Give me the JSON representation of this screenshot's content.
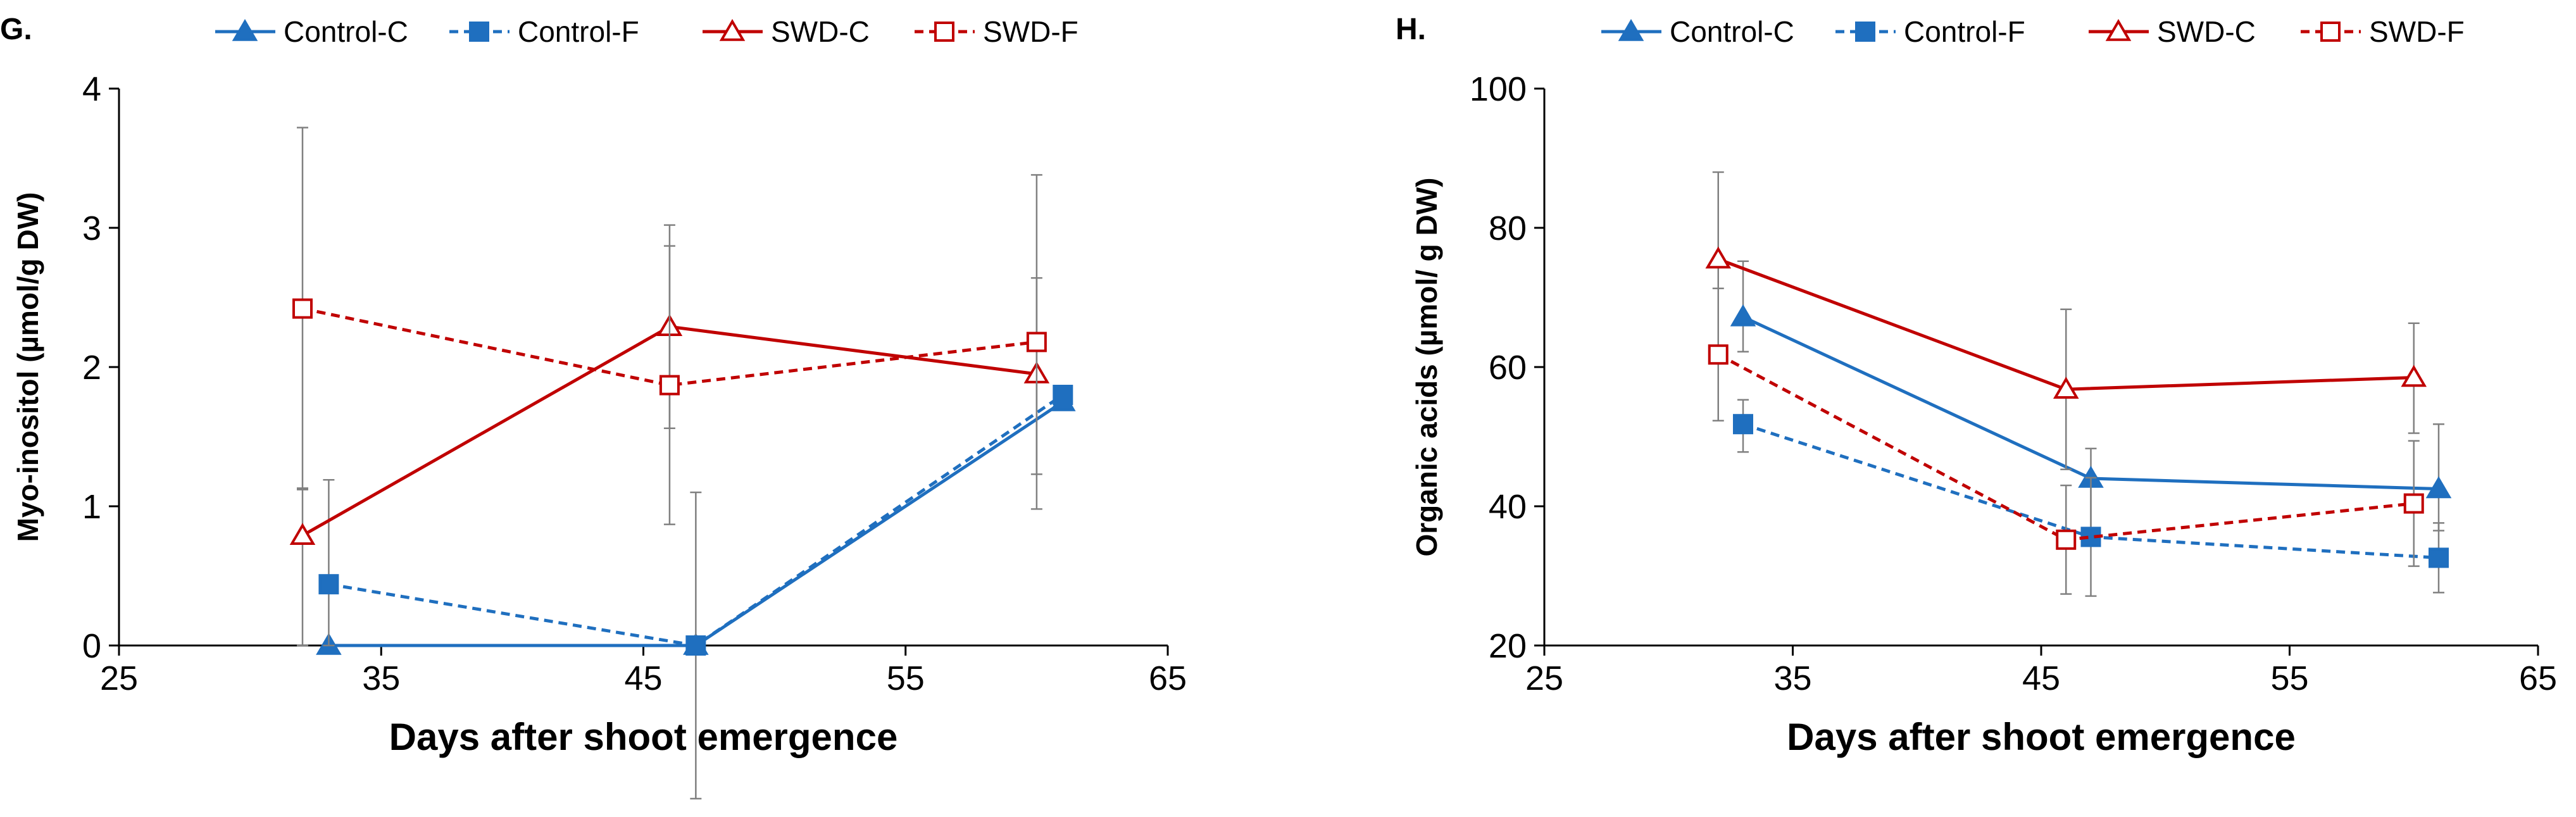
{
  "colors": {
    "control": "#1f6fbf",
    "swd": "#c00000",
    "error": "#808080",
    "axis": "#000000"
  },
  "chart_data": [
    {
      "type": "scatter",
      "panel_label": "G.",
      "xlabel": "Days after shoot emergence",
      "ylabel": "Myo-inositol (µmol/g DW)",
      "xlim": [
        25,
        65
      ],
      "ylim": [
        0,
        4
      ],
      "xticks": [
        "25",
        "35",
        "45",
        "55",
        "65"
      ],
      "yticks": [
        "0",
        "1",
        "2",
        "3",
        "4"
      ],
      "series": [
        {
          "name": "Control-C",
          "group": "control",
          "marker": "triangle-filled",
          "line": "solid",
          "x": [
            33,
            47,
            61
          ],
          "y": [
            0.0,
            0.0,
            1.75
          ],
          "err_low": [
            0.0,
            0.0,
            0.0
          ],
          "err_high": [
            0.0,
            0.0,
            0.0
          ]
        },
        {
          "name": "Control-F",
          "group": "control",
          "marker": "square-filled",
          "line": "dashed",
          "x": [
            33,
            47,
            61
          ],
          "y": [
            0.44,
            0.0,
            1.8
          ],
          "err_low": [
            0.44,
            1.1,
            0.0
          ],
          "err_high": [
            0.75,
            1.1,
            0.0
          ]
        },
        {
          "name": "SWD-C",
          "group": "swd",
          "marker": "triangle-open",
          "line": "solid",
          "x": [
            32,
            46,
            60
          ],
          "y": [
            0.79,
            2.29,
            1.95
          ],
          "err_low": [
            0.79,
            0.73,
            0.97
          ],
          "err_high": [
            0.34,
            0.73,
            0.69
          ]
        },
        {
          "name": "SWD-F",
          "group": "swd",
          "marker": "square-open",
          "line": "dashed",
          "x": [
            32,
            46,
            60
          ],
          "y": [
            2.42,
            1.87,
            2.18
          ],
          "err_low": [
            1.3,
            1.0,
            0.95
          ],
          "err_high": [
            1.3,
            1.0,
            1.2
          ]
        }
      ]
    },
    {
      "type": "scatter",
      "panel_label": "H.",
      "xlabel": "Days after shoot emergence",
      "ylabel": "Organic acids (µmol/ g DW)",
      "xlim": [
        25,
        65
      ],
      "ylim": [
        20,
        100
      ],
      "xticks": [
        "25",
        "35",
        "45",
        "55",
        "65"
      ],
      "yticks": [
        "20",
        "40",
        "60",
        "80",
        "100"
      ],
      "series": [
        {
          "name": "Control-C",
          "group": "control",
          "marker": "triangle-filled",
          "line": "solid",
          "x": [
            33,
            47,
            61
          ],
          "y": [
            67.2,
            44.0,
            42.5
          ],
          "err_low": [
            5.0,
            8.0,
            6.0
          ],
          "err_high": [
            8.0,
            4.3,
            9.3
          ]
        },
        {
          "name": "Control-F",
          "group": "control",
          "marker": "square-filled",
          "line": "dashed",
          "x": [
            33,
            47,
            61
          ],
          "y": [
            51.8,
            35.6,
            32.6
          ],
          "err_low": [
            4.0,
            8.5,
            5.0
          ],
          "err_high": [
            3.5,
            8.5,
            5.0
          ]
        },
        {
          "name": "SWD-C",
          "group": "swd",
          "marker": "triangle-open",
          "line": "solid",
          "x": [
            32,
            46,
            60
          ],
          "y": [
            75.5,
            56.8,
            58.5
          ],
          "err_low": [
            12.5,
            11.5,
            8.0
          ],
          "err_high": [
            12.5,
            11.5,
            7.8
          ]
        },
        {
          "name": "SWD-F",
          "group": "swd",
          "marker": "square-open",
          "line": "dashed",
          "x": [
            32,
            46,
            60
          ],
          "y": [
            61.8,
            35.2,
            40.4
          ],
          "err_low": [
            9.5,
            7.8,
            9.0
          ],
          "err_high": [
            9.5,
            7.8,
            9.0
          ]
        }
      ]
    }
  ]
}
